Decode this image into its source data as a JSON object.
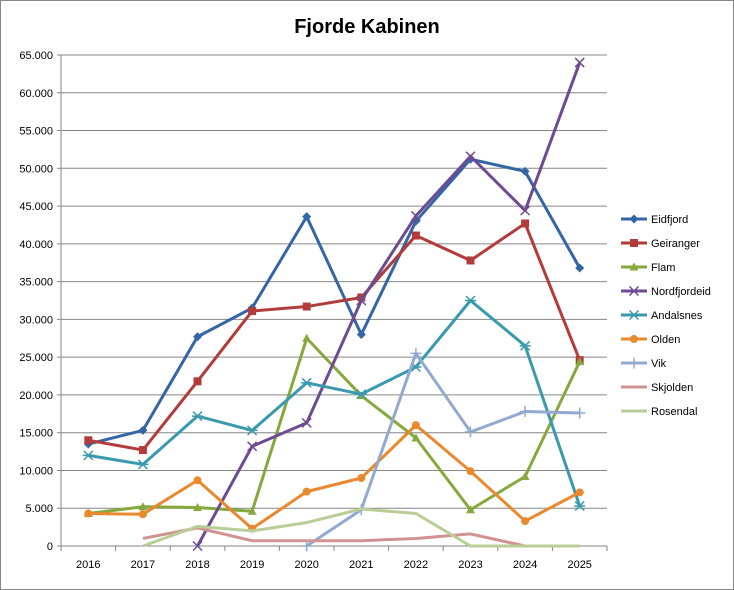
{
  "chart_data": {
    "type": "line",
    "title": "Fjorde Kabinen",
    "xlabel": "",
    "ylabel": "",
    "x": [
      "2016",
      "2017",
      "2018",
      "2019",
      "2020",
      "2021",
      "2022",
      "2023",
      "2024",
      "2025"
    ],
    "ylim": [
      0,
      65000
    ],
    "ytick_step": 5000,
    "yticks": [
      "0",
      "5.000",
      "10.000",
      "15.000",
      "20.000",
      "25.000",
      "30.000",
      "35.000",
      "40.000",
      "45.000",
      "50.000",
      "55.000",
      "60.000",
      "65.000"
    ],
    "grid": "horizontal",
    "legend_position": "right",
    "series": [
      {
        "name": "Eidfjord",
        "color": "#3465A4",
        "marker": "diamond",
        "values": [
          13500,
          15300,
          27700,
          31500,
          43600,
          28000,
          43000,
          51200,
          49600,
          36800
        ]
      },
      {
        "name": "Geiranger",
        "color": "#B23C3A",
        "marker": "square",
        "values": [
          14000,
          12700,
          21800,
          31100,
          31700,
          32900,
          41100,
          37800,
          42700,
          24600
        ]
      },
      {
        "name": "Flam",
        "color": "#86A83C",
        "marker": "triangle",
        "values": [
          4300,
          5200,
          5100,
          4600,
          27500,
          19900,
          14300,
          4800,
          9200,
          24400
        ]
      },
      {
        "name": "Nordfjordeid",
        "color": "#6E4B90",
        "marker": "x",
        "values": [
          null,
          null,
          0,
          13200,
          16300,
          32500,
          43700,
          51600,
          44400,
          64000
        ]
      },
      {
        "name": "Andalsnes",
        "color": "#3A9AAD",
        "marker": "star",
        "values": [
          12000,
          10800,
          17200,
          15300,
          21600,
          20100,
          23700,
          32500,
          26500,
          5300
        ]
      },
      {
        "name": "Olden",
        "color": "#E8892D",
        "marker": "circle",
        "values": [
          4300,
          4200,
          8700,
          2300,
          7200,
          9000,
          16000,
          9900,
          3300,
          7100
        ]
      },
      {
        "name": "Vik",
        "color": "#93A9CF",
        "marker": "plus",
        "values": [
          null,
          null,
          null,
          null,
          0,
          4800,
          25500,
          15100,
          17800,
          17600
        ]
      },
      {
        "name": "Skjolden",
        "color": "#D19392",
        "marker": "none",
        "values": [
          null,
          1000,
          2400,
          700,
          700,
          700,
          1000,
          1600,
          0,
          0
        ]
      },
      {
        "name": "Rosendal",
        "color": "#B9CD96",
        "marker": "none",
        "values": [
          null,
          0,
          2600,
          2000,
          3100,
          4900,
          4300,
          0,
          0,
          0
        ]
      }
    ]
  }
}
